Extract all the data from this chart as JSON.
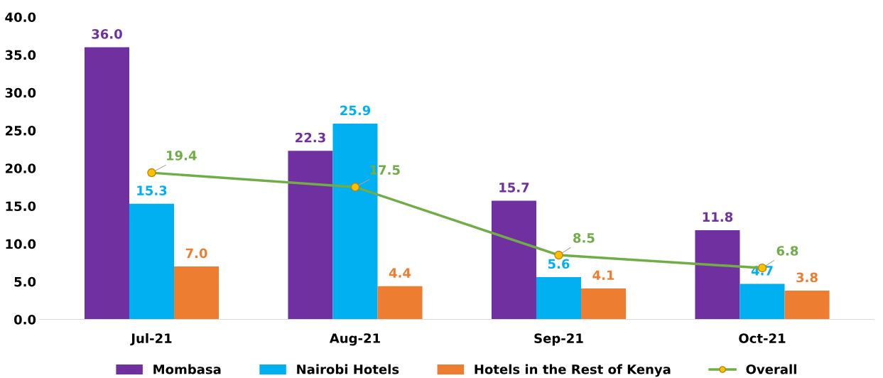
{
  "chart_data": {
    "type": "bar",
    "categories": [
      "Jul-21",
      "Aug-21",
      "Sep-21",
      "Oct-21"
    ],
    "series": [
      {
        "name": "Mombasa",
        "color": "#7030a0",
        "values": [
          36.0,
          22.3,
          15.7,
          11.8
        ],
        "value_labels": [
          "36.0",
          "22.3",
          "15.7",
          "11.8"
        ]
      },
      {
        "name": "Nairobi Hotels",
        "color": "#00b0f0",
        "values": [
          15.3,
          25.9,
          5.6,
          4.7
        ],
        "value_labels": [
          "15.3",
          "25.9",
          "5.6",
          "4.7"
        ]
      },
      {
        "name": "Hotels in the Rest of Kenya",
        "color": "#ed7d31",
        "values": [
          7.0,
          4.4,
          4.1,
          3.8
        ],
        "value_labels": [
          "7.0",
          "4.4",
          "4.1",
          "3.8"
        ]
      },
      {
        "name": "Overall",
        "type": "line",
        "color": "#70ad47",
        "values": [
          19.4,
          17.5,
          8.5,
          6.8
        ],
        "value_labels": [
          "19.4",
          "17.5",
          "8.5",
          "6.8"
        ],
        "marker": "circle"
      }
    ],
    "ylim": [
      0,
      40
    ],
    "yticks": [
      {
        "value": 0,
        "label": "0.0"
      },
      {
        "value": 5,
        "label": "5.0"
      },
      {
        "value": 10,
        "label": "10.0"
      },
      {
        "value": 15,
        "label": "15.0"
      },
      {
        "value": 20,
        "label": "20.0"
      },
      {
        "value": 25,
        "label": "25.0"
      },
      {
        "value": 30,
        "label": "30.0"
      },
      {
        "value": 35,
        "label": "35.0"
      },
      {
        "value": 40,
        "label": "40.0"
      }
    ],
    "grid": false,
    "legend": "bottom"
  }
}
